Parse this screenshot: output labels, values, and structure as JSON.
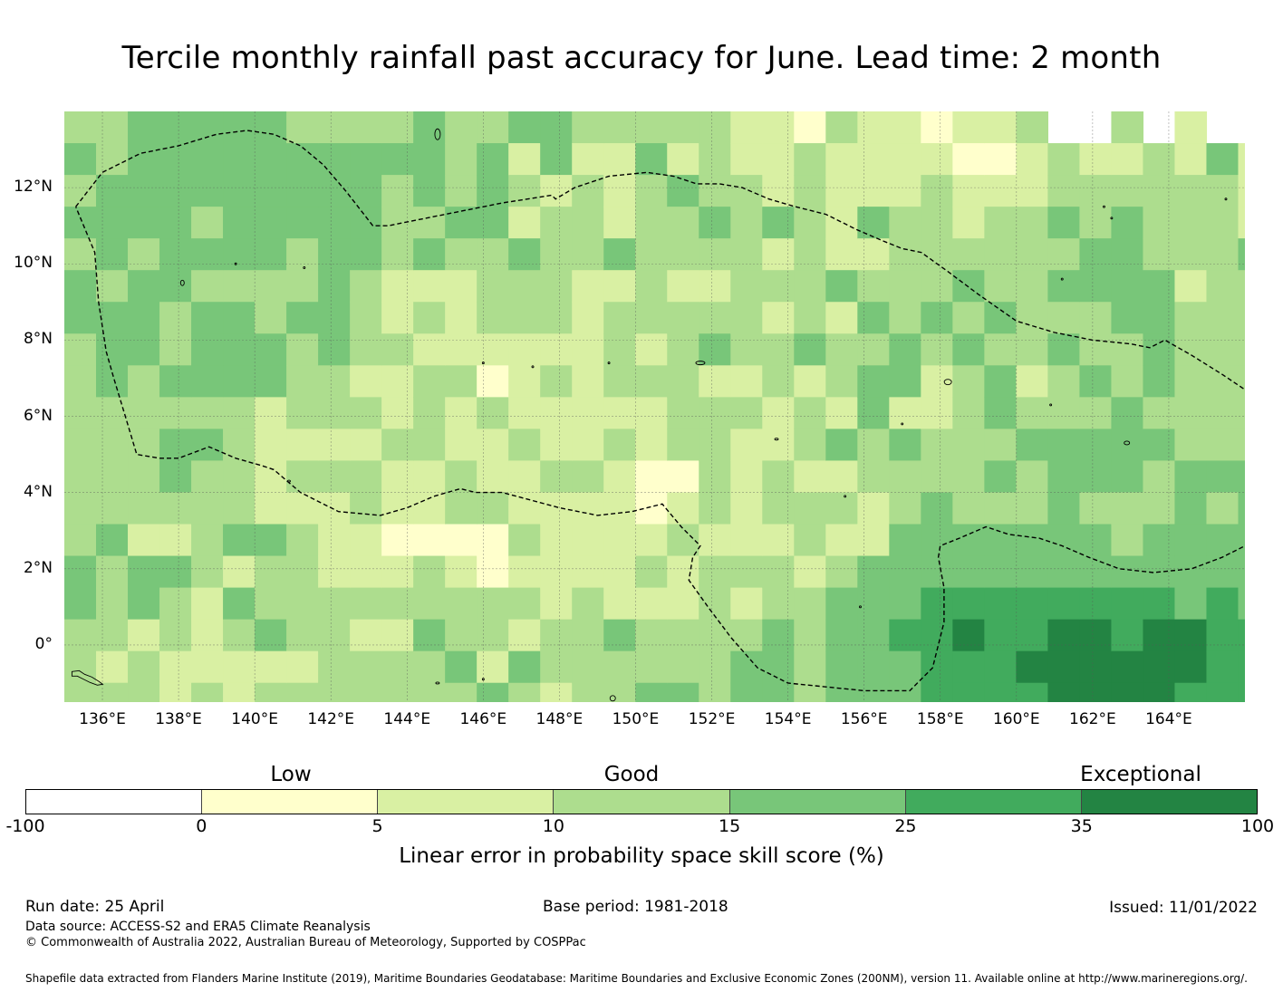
{
  "title": "Tercile monthly rainfall past accuracy for June. Lead time: 2 month",
  "chart_data": {
    "type": "heatmap",
    "x_tick_labels": [
      "136°E",
      "138°E",
      "140°E",
      "142°E",
      "144°E",
      "146°E",
      "148°E",
      "150°E",
      "152°E",
      "154°E",
      "156°E",
      "158°E",
      "160°E",
      "162°E",
      "164°E"
    ],
    "x_ticks": [
      136,
      138,
      140,
      142,
      144,
      146,
      148,
      150,
      152,
      154,
      156,
      158,
      160,
      162,
      164
    ],
    "y_tick_labels": [
      "12°N",
      "10°N",
      "8°N",
      "6°N",
      "4°N",
      "2°N",
      "0°"
    ],
    "y_ticks": [
      12,
      10,
      8,
      6,
      4,
      2,
      0
    ],
    "xlim": [
      135,
      166
    ],
    "ylim": [
      -1.5,
      14
    ],
    "grid": true,
    "color_scale": {
      "title": "Linear error in probability space skill score (%)",
      "tick_labels": [
        "-100",
        "0",
        "5",
        "10",
        "15",
        "25",
        "35",
        "100"
      ],
      "category_labels": [
        "Low",
        "Good",
        "Exceptional"
      ],
      "colors": [
        "#ffffff",
        "#ffffcc",
        "#d9f0a3",
        "#addd8e",
        "#78c679",
        "#41ab5d",
        "#238443"
      ]
    },
    "boundary": "Federated States of Micronesia Exclusive Economic Zone (dashed line)"
  },
  "footer": {
    "run_date": "Run date: 25 April",
    "base_period": "Base period: 1981-2018",
    "issued": "Issued: 11/01/2022",
    "data_source": "Data source: ACCESS-S2 and ERA5 Climate Reanalysis",
    "copyright": "© Commonwealth of Australia 2022, Australian Bureau of Meteorology, Supported by COSPPac",
    "shapefile": "Shapefile data extracted from Flanders Marine Institute (2019), Maritime Boundaries Geodatabase: Maritime Boundaries and Exclusive Economic Zones (200NM), version 11. Available online at http://www.marineregions.org/."
  }
}
